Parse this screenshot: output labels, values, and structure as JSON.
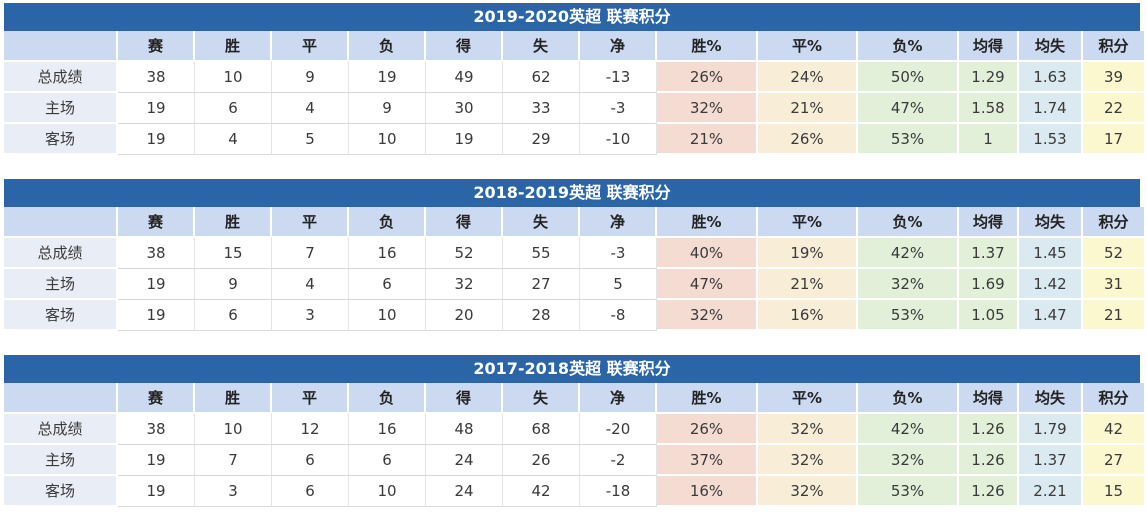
{
  "colors": {
    "title_bar": "#2a65a8",
    "title_text": "#ffffff",
    "header_bg": "#cbdaf0",
    "label_bg": "#e9edf5",
    "cell_bg": "#ffffff",
    "win_pct_bg": "#f5dcd3",
    "draw_pct_bg": "#f8eed8",
    "loss_pct_bg": "#e3f0d9",
    "avg_for_bg": "#e3f0d9",
    "avg_against_bg": "#dbeaf0",
    "points_bg": "#fbf7cf",
    "text": "#3a3a3a"
  },
  "columns": [
    "",
    "赛",
    "胜",
    "平",
    "负",
    "得",
    "失",
    "净",
    "胜%",
    "平%",
    "负%",
    "均得",
    "均失",
    "积分"
  ],
  "tables": [
    {
      "title": "2019-2020英超 联赛积分",
      "rows": [
        {
          "label": "总成绩",
          "values": [
            "38",
            "10",
            "9",
            "19",
            "49",
            "62",
            "-13",
            "26%",
            "24%",
            "50%",
            "1.29",
            "1.63",
            "39"
          ]
        },
        {
          "label": "主场",
          "values": [
            "19",
            "6",
            "4",
            "9",
            "30",
            "33",
            "-3",
            "32%",
            "21%",
            "47%",
            "1.58",
            "1.74",
            "22"
          ]
        },
        {
          "label": "客场",
          "values": [
            "19",
            "4",
            "5",
            "10",
            "19",
            "29",
            "-10",
            "21%",
            "26%",
            "53%",
            "1",
            "1.53",
            "17"
          ]
        }
      ]
    },
    {
      "title": "2018-2019英超 联赛积分",
      "rows": [
        {
          "label": "总成绩",
          "values": [
            "38",
            "15",
            "7",
            "16",
            "52",
            "55",
            "-3",
            "40%",
            "19%",
            "42%",
            "1.37",
            "1.45",
            "52"
          ]
        },
        {
          "label": "主场",
          "values": [
            "19",
            "9",
            "4",
            "6",
            "32",
            "27",
            "5",
            "47%",
            "21%",
            "32%",
            "1.69",
            "1.42",
            "31"
          ]
        },
        {
          "label": "客场",
          "values": [
            "19",
            "6",
            "3",
            "10",
            "20",
            "28",
            "-8",
            "32%",
            "16%",
            "53%",
            "1.05",
            "1.47",
            "21"
          ]
        }
      ]
    },
    {
      "title": "2017-2018英超 联赛积分",
      "rows": [
        {
          "label": "总成绩",
          "values": [
            "38",
            "10",
            "12",
            "16",
            "48",
            "68",
            "-20",
            "26%",
            "32%",
            "42%",
            "1.26",
            "1.79",
            "42"
          ]
        },
        {
          "label": "主场",
          "values": [
            "19",
            "7",
            "6",
            "6",
            "24",
            "26",
            "-2",
            "37%",
            "32%",
            "32%",
            "1.26",
            "1.37",
            "27"
          ]
        },
        {
          "label": "客场",
          "values": [
            "19",
            "3",
            "6",
            "10",
            "24",
            "42",
            "-18",
            "16%",
            "32%",
            "53%",
            "1.26",
            "2.21",
            "15"
          ]
        }
      ]
    }
  ]
}
